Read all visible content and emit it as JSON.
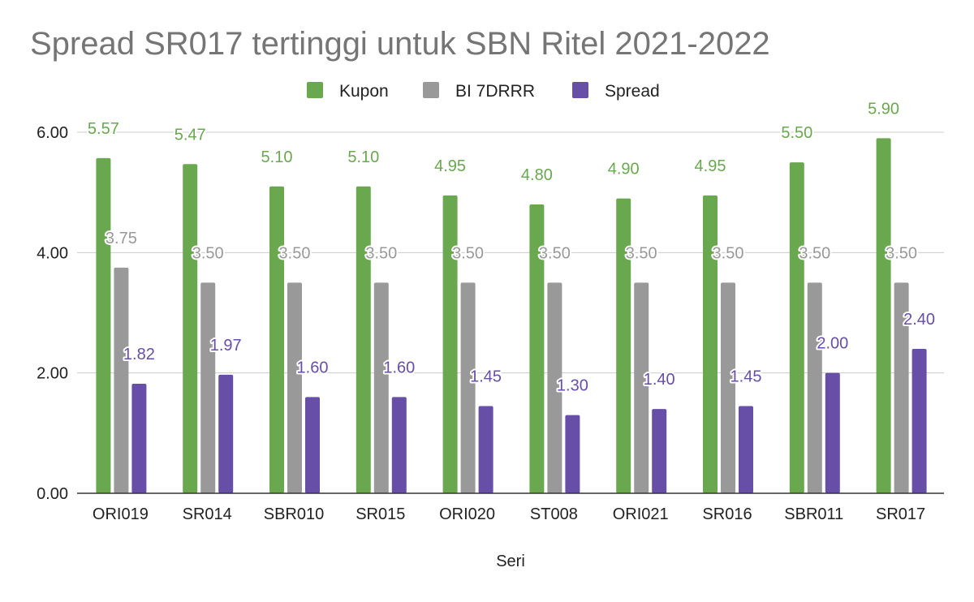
{
  "chart_data": {
    "type": "bar",
    "title": "Spread SR017 tertinggi untuk SBN Ritel 2021-2022",
    "xlabel": "Seri",
    "ylabel": "",
    "categories": [
      "ORI019",
      "SR014",
      "SBR010",
      "SR015",
      "ORI020",
      "ST008",
      "ORI021",
      "SR016",
      "SBR011",
      "SR017"
    ],
    "series": [
      {
        "name": "Kupon",
        "color": "#6aa84f",
        "values": [
          5.57,
          5.47,
          5.1,
          5.1,
          4.95,
          4.8,
          4.9,
          4.95,
          5.5,
          5.9
        ],
        "labels": [
          "5.57",
          "5.47",
          "5.10",
          "5.10",
          "4.95",
          "4.80",
          "4.90",
          "4.95",
          "5.50",
          "5.90"
        ]
      },
      {
        "name": "BI 7DRRR",
        "color": "#999999",
        "values": [
          3.75,
          3.5,
          3.5,
          3.5,
          3.5,
          3.5,
          3.5,
          3.5,
          3.5,
          3.5
        ],
        "labels": [
          "3.75",
          "3.50",
          "3.50",
          "3.50",
          "3.50",
          "3.50",
          "3.50",
          "3.50",
          "3.50",
          "3.50"
        ]
      },
      {
        "name": "Spread",
        "color": "#674ea7",
        "values": [
          1.82,
          1.97,
          1.6,
          1.6,
          1.45,
          1.3,
          1.4,
          1.45,
          2.0,
          2.4
        ],
        "labels": [
          "1.82",
          "1.97",
          "1.60",
          "1.60",
          "1.45",
          "1.30",
          "1.40",
          "1.45",
          "2.00",
          "2.40"
        ]
      }
    ],
    "ylim": [
      0,
      6
    ],
    "yticks": [
      "0.00",
      "2.00",
      "4.00",
      "6.00"
    ],
    "grid": true,
    "legend_position": "top"
  }
}
